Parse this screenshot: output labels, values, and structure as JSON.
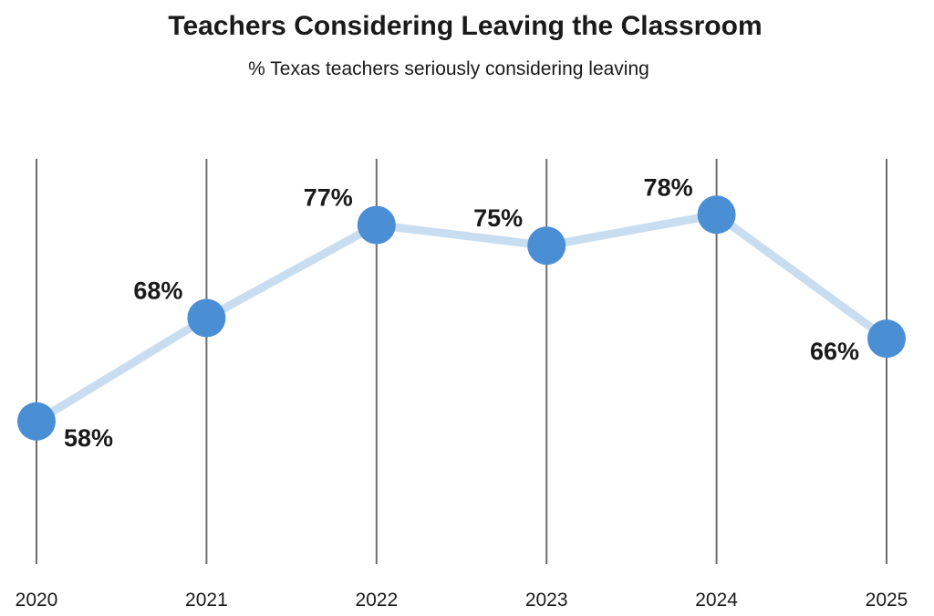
{
  "colors": {
    "line": "#c9ddf0",
    "point": "#4a8ed3",
    "gridline": "#6e6e6e",
    "text": "#1a1a1a"
  },
  "chart_data": {
    "type": "line",
    "title": "Teachers Considering Leaving the Classroom",
    "subtitle": "% Texas teachers seriously considering leaving",
    "x": [
      "2020",
      "2021",
      "2022",
      "2023",
      "2024",
      "2025"
    ],
    "values": [
      58,
      68,
      77,
      75,
      78,
      66
    ],
    "data_labels": [
      "58%",
      "68%",
      "77%",
      "75%",
      "78%",
      "66%"
    ],
    "ylim": [
      48,
      88
    ],
    "grid": "vertical",
    "legend": "none"
  }
}
